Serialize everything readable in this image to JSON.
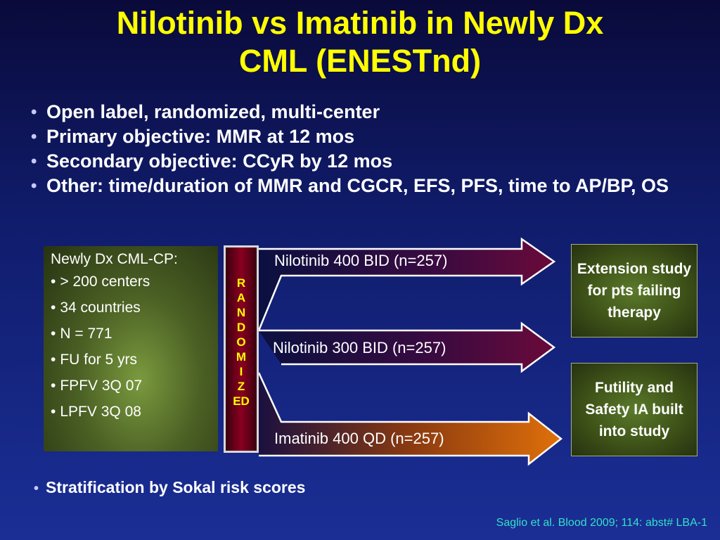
{
  "title": {
    "line1": "Nilotinib vs Imatinib in Newly Dx",
    "line2": "CML (ENESTnd)"
  },
  "bullets": [
    "Open label, randomized, multi-center",
    "Primary objective: MMR at 12 mos",
    "Secondary objective: CCyR by 12 mos",
    "Other: time/duration of MMR and CGCR, EFS, PFS, time to AP/BP, OS"
  ],
  "bullet_glyph": "•",
  "population_box": {
    "heading": "Newly Dx CML-CP:",
    "items": [
      "> 200 centers",
      "34 countries",
      "N = 771",
      "FU for 5 yrs",
      "FPFV 3Q 07",
      "LPFV 3Q 08"
    ]
  },
  "randomized_letters": [
    "R",
    "A",
    "N",
    "D",
    "O",
    "M",
    "I",
    "Z",
    "ED"
  ],
  "arms": [
    {
      "label": "Nilotinib 400 BID (n=257)",
      "color": "#5a0a3a"
    },
    {
      "label": "Nilotinib 300 BID (n=257)",
      "color": "#5a0a3a"
    },
    {
      "label": "Imatinib 400 QD (n=257)",
      "color": "#c85a0a"
    }
  ],
  "right_boxes": [
    "Extension study for pts failing therapy",
    "Futility and Safety IA built into study"
  ],
  "stratification": "Stratification by Sokal risk scores",
  "citation": "Saglio et al. Blood 2009; 114: abst# LBA-1",
  "colors": {
    "title": "#ffff00",
    "background": "#101c6b",
    "citation": "#33e1c8",
    "randomize_box": "#8a0020"
  }
}
